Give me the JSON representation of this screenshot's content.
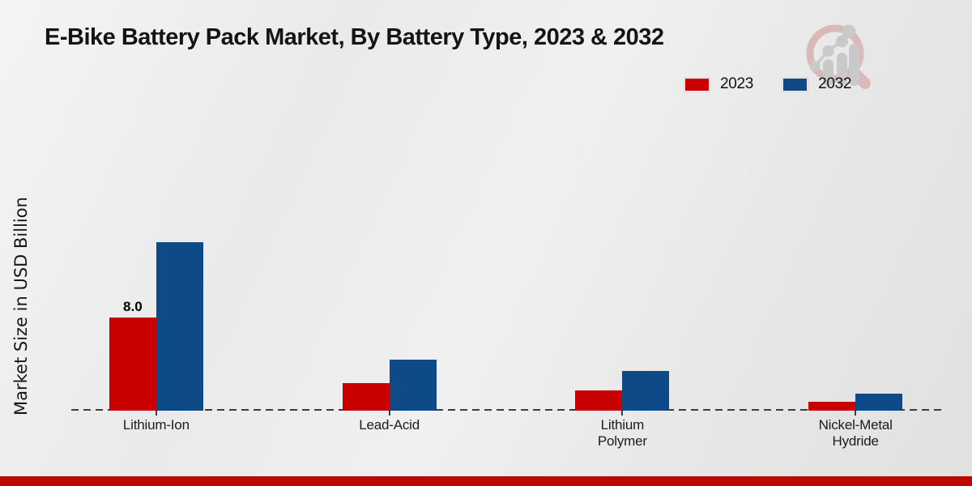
{
  "title": "E-Bike Battery Pack Market, By Battery Type, 2023 & 2032",
  "y_axis_label": "Market Size in USD Billion",
  "legend": [
    {
      "label": "2023",
      "color": "#c80100"
    },
    {
      "label": "2032",
      "color": "#0d4a87"
    }
  ],
  "colors": {
    "series_2023": "#c80100",
    "series_2032": "#0d4a87",
    "footer_bar": "#bb0802",
    "baseline": "#3d3d3d",
    "watermark_ring": "#dcb9b9",
    "watermark_gray": "#c9c9c9"
  },
  "chart_data": {
    "type": "bar",
    "title": "E-Bike Battery Pack Market, By Battery Type, 2023 & 2032",
    "categories": [
      "Lithium-Ion",
      "Lead-Acid",
      "Lithium Polymer",
      "Nickel-Metal Hydride"
    ],
    "series": [
      {
        "name": "2023",
        "color": "#c80100",
        "values": [
          8.0,
          2.4,
          1.75,
          0.75
        ]
      },
      {
        "name": "2032",
        "color": "#0d4a87",
        "values": [
          14.5,
          4.4,
          3.4,
          1.45
        ]
      }
    ],
    "data_labels": [
      {
        "series": "2023",
        "category": "Lithium-Ion",
        "text": "8.0"
      }
    ],
    "xlabel": "",
    "ylabel": "Market Size in USD Billion",
    "ylim": [
      0,
      16
    ],
    "y_ticks_visible": false,
    "grid": false,
    "baseline_style": "dashed",
    "legend_position": "top-right"
  }
}
